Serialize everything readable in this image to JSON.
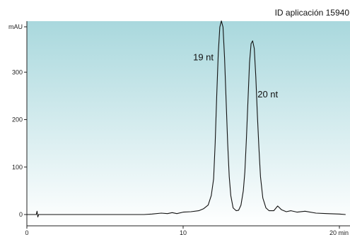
{
  "app_id": "ID aplicación 15940",
  "colors": {
    "gradient_top": "#a9d8dd",
    "gradient_bottom": "#ffffff",
    "trace": "#111111",
    "axis": "#222222"
  },
  "chart_data": {
    "type": "line",
    "title": "",
    "xlabel": "min",
    "ylabel": "mAU",
    "xlim": [
      0,
      20.5
    ],
    "ylim": [
      -10,
      410
    ],
    "grid": false,
    "x_ticks": [
      0,
      10,
      20
    ],
    "x_tick_labels": [
      "0",
      "10",
      "20 min"
    ],
    "y_ticks": [
      0,
      100,
      200,
      300
    ],
    "y_tick_labels": [
      "0",
      "100",
      "200",
      "300"
    ],
    "y_axis_unit_label": "mAU",
    "annotations": [
      {
        "text": "19 nt",
        "x": 12.4,
        "y": 408
      },
      {
        "text": "20 nt",
        "x": 14.4,
        "y": 366
      }
    ],
    "series": [
      {
        "x": [
          0.0,
          0.3,
          0.6,
          0.65,
          0.7,
          0.75,
          0.8,
          1.5,
          3.0,
          4.5,
          6.0,
          7.5,
          8.0,
          8.6,
          9.0,
          9.3,
          9.6,
          10.0,
          10.5,
          11.0,
          11.3,
          11.6,
          11.8,
          11.95,
          12.05,
          12.15,
          12.25,
          12.35,
          12.45,
          12.55,
          12.65,
          12.75,
          12.85,
          12.95,
          13.05,
          13.2,
          13.4,
          13.55,
          13.7,
          13.85,
          13.95,
          14.05,
          14.15,
          14.25,
          14.35,
          14.45,
          14.55,
          14.65,
          14.75,
          14.85,
          14.95,
          15.1,
          15.3,
          15.5,
          15.8,
          16.05,
          16.3,
          16.6,
          16.9,
          17.3,
          17.8,
          18.5,
          19.2,
          20.0,
          20.4
        ],
        "y": [
          0,
          0,
          0,
          7,
          -5,
          0,
          0,
          0,
          0,
          0,
          0,
          0,
          1,
          3,
          2,
          4,
          2,
          5,
          6,
          8,
          12,
          20,
          40,
          75,
          150,
          250,
          340,
          395,
          408,
          395,
          330,
          240,
          150,
          80,
          40,
          14,
          8,
          9,
          20,
          50,
          90,
          160,
          240,
          320,
          360,
          366,
          350,
          290,
          210,
          140,
          80,
          35,
          14,
          8,
          8,
          18,
          10,
          6,
          8,
          5,
          7,
          3,
          2,
          1,
          0
        ]
      }
    ]
  }
}
